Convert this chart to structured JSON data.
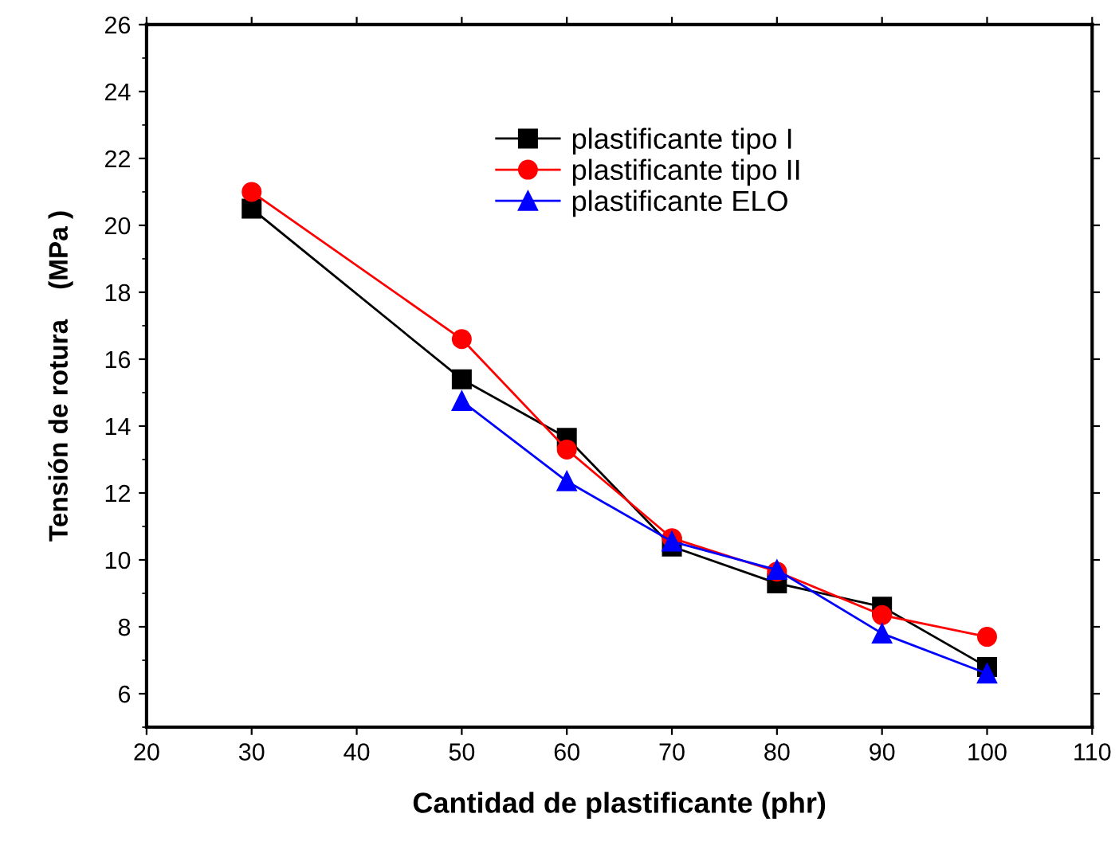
{
  "chart_data": {
    "type": "line",
    "xlabel": "Cantidad de plastificante (phr)",
    "ylabel": "Tensión de rotura    (MPa )",
    "xlim": [
      20,
      110
    ],
    "xticks": [
      20,
      30,
      40,
      50,
      60,
      70,
      80,
      90,
      100,
      110
    ],
    "ylim": [
      5,
      26
    ],
    "yticks": [
      6,
      8,
      10,
      12,
      14,
      16,
      18,
      20,
      22,
      24,
      26
    ],
    "grid": false,
    "legend": "top right",
    "line_style": "solid",
    "series": [
      {
        "name": "plastificante tipo I",
        "color": "#000000",
        "marker": "square",
        "x": [
          30,
          50,
          60,
          70,
          80,
          90,
          100
        ],
        "values": [
          20.5,
          15.4,
          13.65,
          10.4,
          9.3,
          8.6,
          6.8
        ]
      },
      {
        "name": "plastificante tipo II",
        "color": "#ff0000",
        "marker": "circle",
        "x": [
          30,
          50,
          60,
          70,
          80,
          90,
          100
        ],
        "values": [
          21.0,
          16.6,
          13.3,
          10.65,
          9.65,
          8.35,
          7.7
        ]
      },
      {
        "name": "plastificante ELO",
        "color": "#0000ff",
        "marker": "triangle",
        "x": [
          50,
          60,
          70,
          80,
          90,
          100
        ],
        "values": [
          14.75,
          12.35,
          10.55,
          9.7,
          7.8,
          6.6
        ]
      }
    ]
  }
}
